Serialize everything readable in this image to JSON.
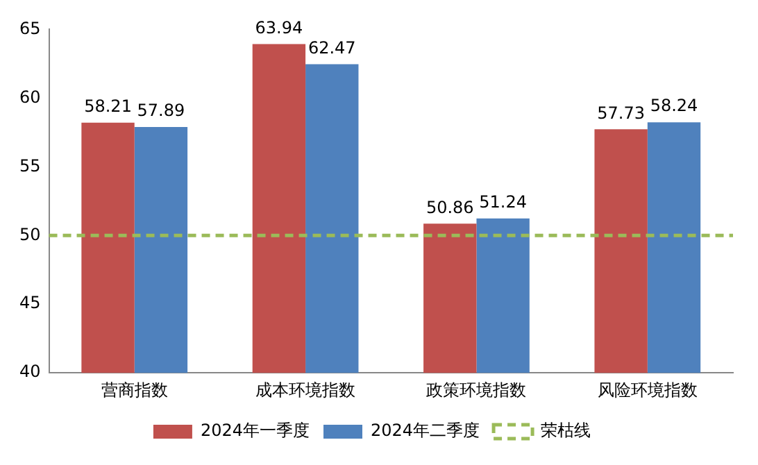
{
  "chart_data": {
    "type": "bar",
    "categories": [
      "营商指数",
      "成本环境指数",
      "政策环境指数",
      "风险环境指数"
    ],
    "series": [
      {
        "name": "2024年一季度",
        "color": "#c0504d",
        "values": [
          58.21,
          63.94,
          50.86,
          57.73
        ]
      },
      {
        "name": "2024年二季度",
        "color": "#4f81bd",
        "values": [
          57.89,
          62.47,
          51.24,
          58.24
        ]
      }
    ],
    "ylim": [
      40,
      65
    ],
    "yticks": [
      40,
      45,
      50,
      55,
      60,
      65
    ],
    "grid": false,
    "legend": "bottom",
    "data_labels": true,
    "ref_lines": [
      {
        "axis": "y",
        "value": 50,
        "label": "荣枯线",
        "color": "#9bbb59",
        "line_style": "dashed"
      }
    ]
  }
}
